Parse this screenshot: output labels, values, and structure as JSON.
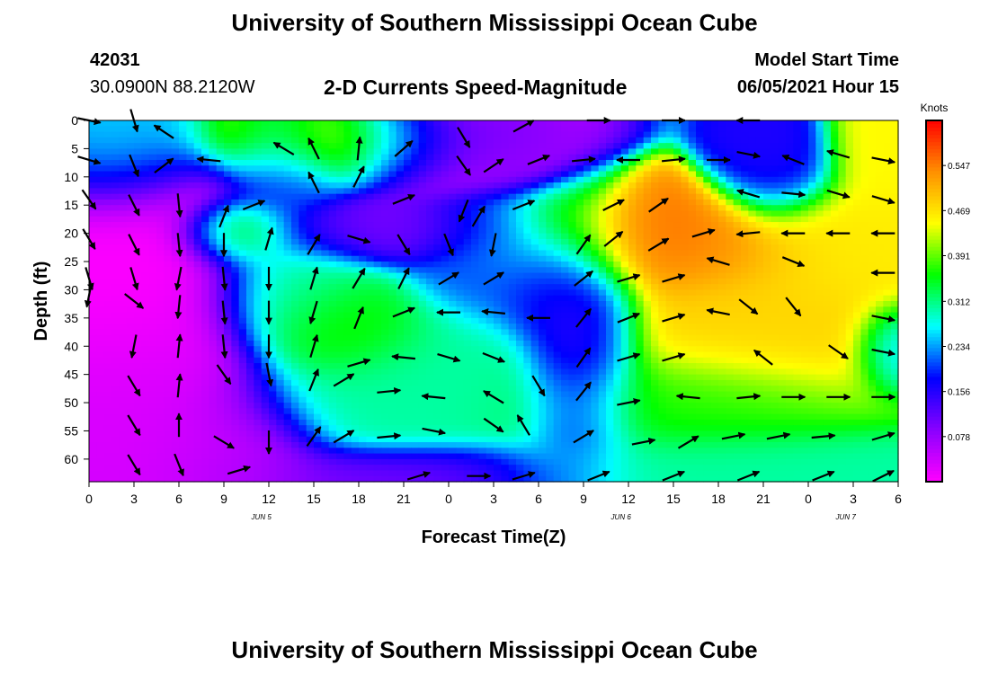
{
  "header": {
    "title": "University of Southern Mississippi Ocean Cube",
    "station_id": "42031",
    "station_coords": "30.0900N  88.2120W",
    "subtitle": "2-D Currents Speed-Magnitude",
    "model_start_label": "Model Start Time",
    "model_start_value": "06/05/2021 Hour 15"
  },
  "footer": {
    "title": "University of Southern Mississippi Ocean Cube"
  },
  "colors": {
    "palette": [
      "#ff00ff",
      "#8a00ff",
      "#0000ff",
      "#00ffff",
      "#00ff00",
      "#ffff00",
      "#ff9000",
      "#ff0000"
    ],
    "arrow": "#000000"
  },
  "chart_data": {
    "type": "heatmap",
    "title": "2-D Currents Speed-Magnitude",
    "xlabel": "Forecast Time(Z)",
    "ylabel": "Depth (ft)",
    "x_tick_labels": [
      "0",
      "3",
      "6",
      "9",
      "12",
      "15",
      "18",
      "21",
      "0",
      "3",
      "6",
      "9",
      "12",
      "15",
      "18",
      "21",
      "0",
      "3",
      "6"
    ],
    "x_tick_hours": [
      0,
      3,
      6,
      9,
      12,
      15,
      18,
      21,
      24,
      27,
      30,
      33,
      36,
      39,
      42,
      45,
      48,
      51,
      54
    ],
    "x_range_hours": [
      0,
      54
    ],
    "date_labels": [
      {
        "text": "JUN 5",
        "hour": 11.5
      },
      {
        "text": "JUN 6",
        "hour": 35.5
      },
      {
        "text": "JUN 7",
        "hour": 50.5
      }
    ],
    "y_tick_labels": [
      "0",
      "5",
      "10",
      "15",
      "20",
      "25",
      "30",
      "35",
      "40",
      "45",
      "50",
      "55",
      "60"
    ],
    "y_ticks": [
      0,
      5,
      10,
      15,
      20,
      25,
      30,
      35,
      40,
      45,
      50,
      55,
      60
    ],
    "y_range": [
      0,
      64
    ],
    "y_inverted": true,
    "grid": false,
    "colorbar": {
      "unit_label": "Knots",
      "tick_labels": [
        "0.547",
        "0.469",
        "0.391",
        "0.312",
        "0.234",
        "0.156",
        "0.078"
      ],
      "ticks": [
        0.547,
        0.469,
        0.391,
        0.312,
        0.234,
        0.156,
        0.078
      ],
      "range": [
        0.0,
        0.625
      ]
    },
    "field_centers": [
      {
        "h": 17,
        "d": 3,
        "v": 0.5,
        "s": 5,
        "sd": 4
      },
      {
        "h": 23,
        "d": 3,
        "v": 0.0,
        "s": 4,
        "sd": 5
      },
      {
        "h": 27,
        "d": 2,
        "v": 0.1,
        "s": 2,
        "sd": 4
      },
      {
        "h": 13,
        "d": 7,
        "v": 0.2,
        "s": 2,
        "sd": 6
      },
      {
        "h": 19,
        "d": 20,
        "v": 0.1,
        "s": 4,
        "sd": 3
      },
      {
        "h": 10,
        "d": 20,
        "v": 0.38,
        "s": 2,
        "sd": 3
      },
      {
        "h": 46,
        "d": 8,
        "v": 0.16,
        "s": 2,
        "sd": 5
      },
      {
        "h": 38,
        "d": 22,
        "v": 0.55,
        "s": 5,
        "sd": 5
      },
      {
        "h": 45,
        "d": 37,
        "v": 0.48,
        "s": 6,
        "sd": 7
      },
      {
        "h": 51,
        "d": 22,
        "v": 0.46,
        "s": 4,
        "sd": 6
      },
      {
        "h": 53,
        "d": 6,
        "v": 0.45,
        "s": 2,
        "sd": 5
      },
      {
        "h": 33,
        "d": 40,
        "v": 0.12,
        "s": 2,
        "sd": 12
      },
      {
        "h": 31,
        "d": 30,
        "v": 0.16,
        "s": 2,
        "sd": 5
      },
      {
        "h": 27,
        "d": 25,
        "v": 0.2,
        "s": 3,
        "sd": 6
      },
      {
        "h": 14,
        "d": 30,
        "v": 0.3,
        "s": 3,
        "sd": 6
      },
      {
        "h": 17,
        "d": 37,
        "v": 0.38,
        "s": 3,
        "sd": 5
      },
      {
        "h": 23,
        "d": 45,
        "v": 0.3,
        "s": 4,
        "sd": 7
      },
      {
        "h": 18,
        "d": 50,
        "v": 0.3,
        "s": 4,
        "sd": 5
      },
      {
        "h": 3,
        "d": 25,
        "v": 0.0,
        "s": 4,
        "sd": 12
      },
      {
        "h": 4,
        "d": 52,
        "v": 0.03,
        "s": 4,
        "sd": 12
      },
      {
        "h": 10,
        "d": 58,
        "v": 0.05,
        "s": 3,
        "sd": 6
      },
      {
        "h": 20,
        "d": 63,
        "v": 0.1,
        "s": 6,
        "sd": 3
      },
      {
        "h": 42,
        "d": 62,
        "v": 0.3,
        "s": 8,
        "sd": 4
      },
      {
        "h": 40,
        "d": 50,
        "v": 0.36,
        "s": 6,
        "sd": 5
      },
      {
        "h": 2,
        "d": 5,
        "v": 0.28,
        "s": 3,
        "sd": 6
      },
      {
        "h": 54,
        "d": 40,
        "v": 0.22,
        "s": 1.5,
        "sd": 4
      }
    ],
    "vectors": [
      {
        "h": 0,
        "d": 0,
        "u": 1.0,
        "v": -0.2
      },
      {
        "h": 3,
        "d": 0,
        "u": 0.3,
        "v": -1.0
      },
      {
        "h": 5,
        "d": 2,
        "u": -0.9,
        "v": 0.6
      },
      {
        "h": 13,
        "d": 5,
        "u": -1.0,
        "v": 0.6
      },
      {
        "h": 15,
        "d": 5,
        "u": -0.5,
        "v": 1.0
      },
      {
        "h": 18,
        "d": 5,
        "u": 0.1,
        "v": 1.0
      },
      {
        "h": 21,
        "d": 5,
        "u": 0.8,
        "v": 0.7
      },
      {
        "h": 25,
        "d": 3,
        "u": 0.6,
        "v": -1.0
      },
      {
        "h": 29,
        "d": 1,
        "u": 0.9,
        "v": 0.5
      },
      {
        "h": 34,
        "d": 0,
        "u": 1.0,
        "v": 0.0
      },
      {
        "h": 39,
        "d": 0,
        "u": 1.0,
        "v": 0.0
      },
      {
        "h": 44,
        "d": 0,
        "u": -1.0,
        "v": 0.0
      },
      {
        "h": 0,
        "d": 7,
        "u": 1.0,
        "v": -0.3
      },
      {
        "h": 3,
        "d": 8,
        "u": 0.4,
        "v": -1.0
      },
      {
        "h": 5,
        "d": 8,
        "u": 0.8,
        "v": 0.6
      },
      {
        "h": 8,
        "d": 7,
        "u": -1.0,
        "v": 0.1
      },
      {
        "h": 15,
        "d": 11,
        "u": -0.5,
        "v": 1.0
      },
      {
        "h": 18,
        "d": 10,
        "u": 0.5,
        "v": 1.0
      },
      {
        "h": 25,
        "d": 8,
        "u": 0.7,
        "v": -1.0
      },
      {
        "h": 27,
        "d": 8,
        "u": 0.9,
        "v": 0.6
      },
      {
        "h": 30,
        "d": 7,
        "u": 1.0,
        "v": 0.4
      },
      {
        "h": 33,
        "d": 7,
        "u": 1.0,
        "v": 0.1
      },
      {
        "h": 36,
        "d": 7,
        "u": -1.0,
        "v": 0.0
      },
      {
        "h": 39,
        "d": 7,
        "u": 1.0,
        "v": 0.1
      },
      {
        "h": 42,
        "d": 7,
        "u": 1.0,
        "v": 0.0
      },
      {
        "h": 44,
        "d": 6,
        "u": 1.0,
        "v": -0.2
      },
      {
        "h": 47,
        "d": 7,
        "u": -1.0,
        "v": 0.4
      },
      {
        "h": 50,
        "d": 6,
        "u": -1.0,
        "v": 0.3
      },
      {
        "h": 53,
        "d": 7,
        "u": 1.0,
        "v": -0.2
      },
      {
        "h": 0,
        "d": 14,
        "u": 0.7,
        "v": -1.0
      },
      {
        "h": 3,
        "d": 15,
        "u": 0.5,
        "v": -1.0
      },
      {
        "h": 6,
        "d": 15,
        "u": 0.1,
        "v": -1.0
      },
      {
        "h": 9,
        "d": 17,
        "u": 0.4,
        "v": 1.0
      },
      {
        "h": 11,
        "d": 15,
        "u": 1.0,
        "v": 0.4
      },
      {
        "h": 21,
        "d": 14,
        "u": 1.0,
        "v": 0.4
      },
      {
        "h": 25,
        "d": 16,
        "u": -0.4,
        "v": -1.0
      },
      {
        "h": 26,
        "d": 17,
        "u": 0.6,
        "v": 1.0
      },
      {
        "h": 29,
        "d": 15,
        "u": 1.0,
        "v": 0.4
      },
      {
        "h": 35,
        "d": 15,
        "u": 1.0,
        "v": 0.5
      },
      {
        "h": 38,
        "d": 15,
        "u": 1.0,
        "v": 0.7
      },
      {
        "h": 44,
        "d": 13,
        "u": -1.0,
        "v": 0.3
      },
      {
        "h": 47,
        "d": 13,
        "u": 1.0,
        "v": -0.1
      },
      {
        "h": 50,
        "d": 13,
        "u": 1.0,
        "v": -0.3
      },
      {
        "h": 53,
        "d": 14,
        "u": 1.0,
        "v": -0.3
      },
      {
        "h": 0,
        "d": 21,
        "u": 0.6,
        "v": -1.0
      },
      {
        "h": 3,
        "d": 22,
        "u": 0.5,
        "v": -1.0
      },
      {
        "h": 6,
        "d": 22,
        "u": 0.1,
        "v": -1.0
      },
      {
        "h": 9,
        "d": 22,
        "u": 0.0,
        "v": -1.0
      },
      {
        "h": 12,
        "d": 21,
        "u": 0.3,
        "v": 1.0
      },
      {
        "h": 15,
        "d": 22,
        "u": 0.6,
        "v": 1.0
      },
      {
        "h": 18,
        "d": 21,
        "u": 1.0,
        "v": -0.3
      },
      {
        "h": 21,
        "d": 22,
        "u": 0.6,
        "v": -1.0
      },
      {
        "h": 24,
        "d": 22,
        "u": 0.4,
        "v": -1.0
      },
      {
        "h": 27,
        "d": 22,
        "u": -0.2,
        "v": -1.0
      },
      {
        "h": 33,
        "d": 22,
        "u": 0.7,
        "v": 1.0
      },
      {
        "h": 35,
        "d": 21,
        "u": 1.0,
        "v": 0.8
      },
      {
        "h": 38,
        "d": 22,
        "u": 1.0,
        "v": 0.6
      },
      {
        "h": 41,
        "d": 20,
        "u": 1.0,
        "v": 0.3
      },
      {
        "h": 44,
        "d": 20,
        "u": -1.0,
        "v": -0.1
      },
      {
        "h": 47,
        "d": 20,
        "u": -1.0,
        "v": 0.0
      },
      {
        "h": 50,
        "d": 20,
        "u": -1.0,
        "v": 0.0
      },
      {
        "h": 53,
        "d": 20,
        "u": -1.0,
        "v": 0.0
      },
      {
        "h": 0,
        "d": 28,
        "u": 0.3,
        "v": -1.0
      },
      {
        "h": 3,
        "d": 28,
        "u": 0.3,
        "v": -1.0
      },
      {
        "h": 6,
        "d": 28,
        "u": -0.2,
        "v": -1.0
      },
      {
        "h": 9,
        "d": 28,
        "u": 0.1,
        "v": -1.0
      },
      {
        "h": 12,
        "d": 28,
        "u": 0.0,
        "v": -1.0
      },
      {
        "h": 15,
        "d": 28,
        "u": 0.3,
        "v": 1.0
      },
      {
        "h": 18,
        "d": 28,
        "u": 0.6,
        "v": 1.0
      },
      {
        "h": 21,
        "d": 28,
        "u": 0.5,
        "v": 1.0
      },
      {
        "h": 24,
        "d": 28,
        "u": 1.0,
        "v": 0.6
      },
      {
        "h": 27,
        "d": 28,
        "u": 1.0,
        "v": 0.6
      },
      {
        "h": 33,
        "d": 28,
        "u": 1.0,
        "v": 0.8
      },
      {
        "h": 36,
        "d": 28,
        "u": 1.0,
        "v": 0.3
      },
      {
        "h": 39,
        "d": 28,
        "u": 1.0,
        "v": 0.3
      },
      {
        "h": 42,
        "d": 25,
        "u": -1.0,
        "v": 0.3
      },
      {
        "h": 47,
        "d": 25,
        "u": 1.0,
        "v": -0.4
      },
      {
        "h": 53,
        "d": 27,
        "u": -1.0,
        "v": 0.0
      },
      {
        "h": 0,
        "d": 31,
        "u": -0.2,
        "v": -1.0
      },
      {
        "h": 3,
        "d": 32,
        "u": 0.9,
        "v": -0.7
      },
      {
        "h": 6,
        "d": 33,
        "u": -0.1,
        "v": -1.0
      },
      {
        "h": 9,
        "d": 34,
        "u": 0.1,
        "v": -1.0
      },
      {
        "h": 12,
        "d": 34,
        "u": 0.0,
        "v": -1.0
      },
      {
        "h": 15,
        "d": 34,
        "u": -0.3,
        "v": -1.0
      },
      {
        "h": 18,
        "d": 35,
        "u": 0.4,
        "v": 1.0
      },
      {
        "h": 21,
        "d": 34,
        "u": 1.0,
        "v": 0.4
      },
      {
        "h": 24,
        "d": 34,
        "u": -1.0,
        "v": 0.0
      },
      {
        "h": 27,
        "d": 34,
        "u": -1.0,
        "v": 0.1
      },
      {
        "h": 30,
        "d": 35,
        "u": -1.0,
        "v": 0.0
      },
      {
        "h": 33,
        "d": 35,
        "u": 0.8,
        "v": 1.0
      },
      {
        "h": 36,
        "d": 35,
        "u": 1.0,
        "v": 0.4
      },
      {
        "h": 39,
        "d": 35,
        "u": 1.0,
        "v": 0.3
      },
      {
        "h": 42,
        "d": 34,
        "u": -1.0,
        "v": 0.2
      },
      {
        "h": 44,
        "d": 33,
        "u": 1.0,
        "v": -0.8
      },
      {
        "h": 47,
        "d": 33,
        "u": 0.8,
        "v": -1.0
      },
      {
        "h": 53,
        "d": 35,
        "u": 1.0,
        "v": -0.2
      },
      {
        "h": 3,
        "d": 40,
        "u": -0.2,
        "v": -1.0
      },
      {
        "h": 6,
        "d": 40,
        "u": 0.1,
        "v": 1.0
      },
      {
        "h": 9,
        "d": 40,
        "u": 0.1,
        "v": -1.0
      },
      {
        "h": 12,
        "d": 40,
        "u": 0.0,
        "v": -1.0
      },
      {
        "h": 15,
        "d": 40,
        "u": 0.3,
        "v": 1.0
      },
      {
        "h": 18,
        "d": 43,
        "u": 1.0,
        "v": 0.3
      },
      {
        "h": 21,
        "d": 42,
        "u": -1.0,
        "v": 0.1
      },
      {
        "h": 24,
        "d": 42,
        "u": 1.0,
        "v": -0.3
      },
      {
        "h": 27,
        "d": 42,
        "u": 1.0,
        "v": -0.4
      },
      {
        "h": 33,
        "d": 42,
        "u": 0.7,
        "v": 1.0
      },
      {
        "h": 36,
        "d": 42,
        "u": 1.0,
        "v": 0.3
      },
      {
        "h": 39,
        "d": 42,
        "u": 1.0,
        "v": 0.3
      },
      {
        "h": 45,
        "d": 42,
        "u": -1.0,
        "v": 0.8
      },
      {
        "h": 50,
        "d": 41,
        "u": 1.0,
        "v": -0.7
      },
      {
        "h": 53,
        "d": 41,
        "u": 1.0,
        "v": -0.2
      },
      {
        "h": 3,
        "d": 47,
        "u": 0.6,
        "v": -1.0
      },
      {
        "h": 6,
        "d": 47,
        "u": 0.1,
        "v": 1.0
      },
      {
        "h": 9,
        "d": 45,
        "u": 0.7,
        "v": -1.0
      },
      {
        "h": 12,
        "d": 45,
        "u": 0.2,
        "v": -1.0
      },
      {
        "h": 15,
        "d": 46,
        "u": 0.4,
        "v": 1.0
      },
      {
        "h": 17,
        "d": 46,
        "u": 1.0,
        "v": 0.6
      },
      {
        "h": 20,
        "d": 48,
        "u": 1.0,
        "v": 0.1
      },
      {
        "h": 23,
        "d": 49,
        "u": -1.0,
        "v": 0.1
      },
      {
        "h": 27,
        "d": 49,
        "u": -1.0,
        "v": 0.6
      },
      {
        "h": 30,
        "d": 47,
        "u": 0.6,
        "v": -1.0
      },
      {
        "h": 33,
        "d": 48,
        "u": 0.8,
        "v": 1.0
      },
      {
        "h": 36,
        "d": 50,
        "u": 1.0,
        "v": 0.2
      },
      {
        "h": 40,
        "d": 49,
        "u": -1.0,
        "v": 0.1
      },
      {
        "h": 44,
        "d": 49,
        "u": 1.0,
        "v": 0.1
      },
      {
        "h": 47,
        "d": 49,
        "u": 1.0,
        "v": 0.0
      },
      {
        "h": 50,
        "d": 49,
        "u": 1.0,
        "v": 0.0
      },
      {
        "h": 53,
        "d": 49,
        "u": 1.0,
        "v": 0.0
      },
      {
        "h": 3,
        "d": 54,
        "u": 0.6,
        "v": -1.0
      },
      {
        "h": 6,
        "d": 54,
        "u": 0.0,
        "v": 1.0
      },
      {
        "h": 9,
        "d": 57,
        "u": 1.0,
        "v": -0.6
      },
      {
        "h": 12,
        "d": 57,
        "u": 0.0,
        "v": -1.0
      },
      {
        "h": 15,
        "d": 56,
        "u": 0.7,
        "v": 1.0
      },
      {
        "h": 17,
        "d": 56,
        "u": 1.0,
        "v": 0.6
      },
      {
        "h": 20,
        "d": 56,
        "u": 1.0,
        "v": 0.1
      },
      {
        "h": 23,
        "d": 55,
        "u": 1.0,
        "v": -0.2
      },
      {
        "h": 27,
        "d": 54,
        "u": 1.0,
        "v": -0.7
      },
      {
        "h": 29,
        "d": 54,
        "u": -0.6,
        "v": 1.0
      },
      {
        "h": 33,
        "d": 56,
        "u": 1.0,
        "v": 0.6
      },
      {
        "h": 37,
        "d": 57,
        "u": 1.0,
        "v": 0.2
      },
      {
        "h": 40,
        "d": 57,
        "u": 1.0,
        "v": 0.6
      },
      {
        "h": 43,
        "d": 56,
        "u": 1.0,
        "v": 0.2
      },
      {
        "h": 46,
        "d": 56,
        "u": 1.0,
        "v": 0.2
      },
      {
        "h": 49,
        "d": 56,
        "u": 1.0,
        "v": 0.1
      },
      {
        "h": 53,
        "d": 56,
        "u": 1.0,
        "v": 0.3
      },
      {
        "h": 3,
        "d": 61,
        "u": 0.6,
        "v": -1.0
      },
      {
        "h": 6,
        "d": 61,
        "u": 0.4,
        "v": -1.0
      },
      {
        "h": 10,
        "d": 62,
        "u": 1.0,
        "v": 0.3
      },
      {
        "h": 22,
        "d": 63,
        "u": 1.0,
        "v": 0.3
      },
      {
        "h": 26,
        "d": 63,
        "u": 1.0,
        "v": 0.0
      },
      {
        "h": 29,
        "d": 63,
        "u": 1.0,
        "v": 0.3
      },
      {
        "h": 34,
        "d": 63,
        "u": 1.0,
        "v": 0.4
      },
      {
        "h": 39,
        "d": 63,
        "u": 1.0,
        "v": 0.4
      },
      {
        "h": 44,
        "d": 63,
        "u": 1.0,
        "v": 0.4
      },
      {
        "h": 49,
        "d": 63,
        "u": 1.0,
        "v": 0.4
      },
      {
        "h": 53,
        "d": 63,
        "u": 1.0,
        "v": 0.5
      }
    ]
  }
}
